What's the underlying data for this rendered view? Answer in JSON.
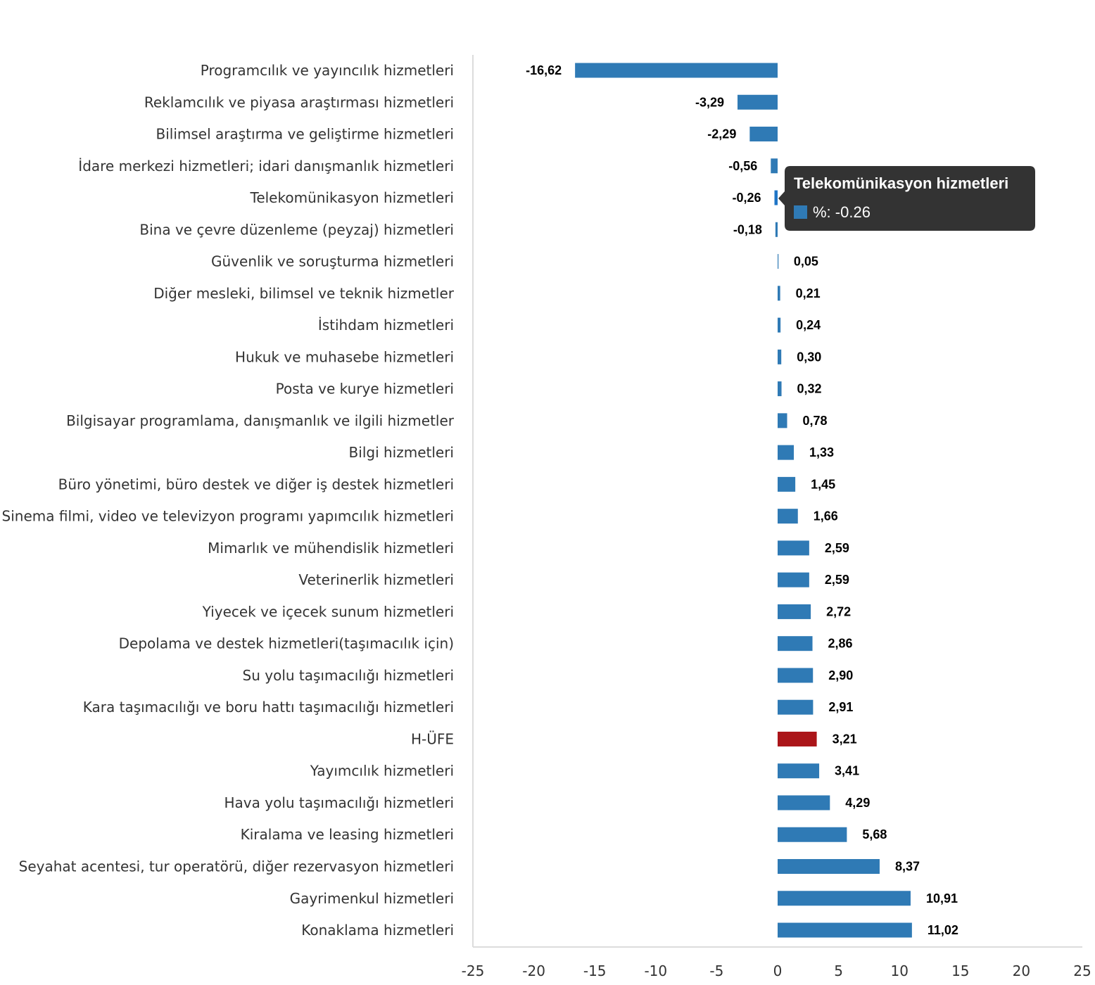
{
  "chart_data": {
    "type": "bar",
    "orientation": "horizontal",
    "categories": [
      "Programcılık ve yayıncılık hizmetleri",
      "Reklamcılık ve piyasa araştırması hizmetleri",
      "Bilimsel araştırma ve geliştirme hizmetleri",
      "İdare merkezi hizmetleri; idari danışmanlık hizmetleri",
      "Telekomünikasyon hizmetleri",
      "Bina ve çevre düzenleme (peyzaj) hizmetleri",
      "Güvenlik ve soruşturma hizmetleri",
      "Diğer mesleki, bilimsel ve teknik hizmetler",
      "İstihdam hizmetleri",
      "Hukuk ve muhasebe hizmetleri",
      "Posta ve kurye hizmetleri",
      "Bilgisayar programlama, danışmanlık ve ilgili hizmetler",
      "Bilgi hizmetleri",
      "Büro yönetimi, büro destek ve diğer iş destek hizmetleri",
      "Sinema filmi, video ve televizyon programı yapımcılık hizmetleri",
      "Mimarlık ve mühendislik hizmetleri",
      "Veterinerlik hizmetleri",
      "Yiyecek ve içecek sunum hizmetleri",
      "Depolama ve destek hizmetleri(taşımacılık için)",
      "Su yolu taşımacılığı hizmetleri",
      "Kara taşımacılığı ve boru hattı taşımacılığı hizmetleri",
      "H-ÜFE",
      "Yayımcılık hizmetleri",
      "Hava yolu taşımacılığı hizmetleri",
      "Kiralama ve leasing hizmetleri",
      "Seyahat acentesi, tur operatörü, diğer rezervasyon hizmetleri",
      "Gayrimenkul hizmetleri",
      "Konaklama hizmetleri"
    ],
    "values": [
      -16.62,
      -3.29,
      -2.29,
      -0.56,
      -0.26,
      -0.18,
      0.05,
      0.21,
      0.24,
      0.3,
      0.32,
      0.78,
      1.33,
      1.45,
      1.66,
      2.59,
      2.59,
      2.72,
      2.86,
      2.9,
      2.91,
      3.21,
      3.41,
      4.29,
      5.68,
      8.37,
      10.91,
      11.02
    ],
    "data_labels": [
      "-16,62",
      "-3,29",
      "-2,29",
      "-0,56",
      "-0,26",
      "-0,18",
      "0,05",
      "0,21",
      "0,24",
      "0,30",
      "0,32",
      "0,78",
      "1,33",
      "1,45",
      "1,66",
      "2,59",
      "2,59",
      "2,72",
      "2,86",
      "2,90",
      "2,91",
      "3,21",
      "3,41",
      "4,29",
      "5,68",
      "8,37",
      "10,91",
      "11,02"
    ],
    "xlim": [
      -25,
      25
    ],
    "x_ticks": [
      "-25",
      "-20",
      "-15",
      "-10",
      "-5",
      "0",
      "5",
      "10",
      "15",
      "20",
      "25"
    ],
    "x_tick_values": [
      -25,
      -20,
      -15,
      -10,
      -5,
      0,
      5,
      10,
      15,
      20,
      25
    ],
    "grid": false,
    "colors": {
      "bar": "#2f7ab5",
      "highlight": "#ab1519",
      "hover": "#1f75c6"
    },
    "highlight_category": "H-ÜFE",
    "hovered_index": 4,
    "tooltip": {
      "title": "Telekomünikasyon hizmetleri",
      "value_text": "%: -0.26"
    }
  }
}
